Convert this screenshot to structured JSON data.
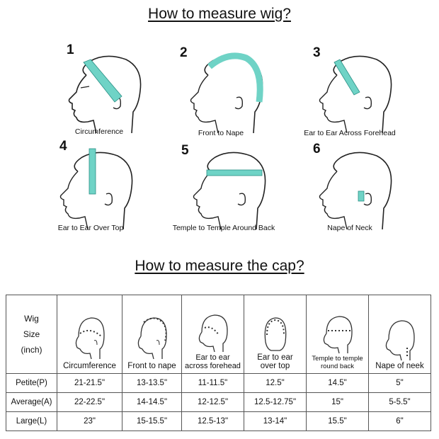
{
  "titles": {
    "wig": "How to measure wig?",
    "cap": "How to measure the cap?"
  },
  "steps": [
    {
      "number": "1",
      "caption": "Circumference"
    },
    {
      "number": "2",
      "caption": "Front to Nape"
    },
    {
      "number": "3",
      "caption": "Ear to Ear Across Forehead"
    },
    {
      "number": "4",
      "caption": "Ear to Ear Over Top"
    },
    {
      "number": "5",
      "caption": "Temple to Temple Around Back"
    },
    {
      "number": "6",
      "caption": "Nape of Neck"
    }
  ],
  "table": {
    "corner": [
      "Wig",
      "Size",
      "(inch)"
    ],
    "columns": [
      {
        "line1": "Circumference",
        "line2": ""
      },
      {
        "line1": "Front to nape",
        "line2": ""
      },
      {
        "line1": "Ear to ear",
        "line2": "across forehead"
      },
      {
        "line1": "Ear to ear",
        "line2": "over top"
      },
      {
        "line1": "Temple to temple",
        "line2": "round back"
      },
      {
        "line1": "Nape of neek",
        "line2": ""
      }
    ],
    "rows": [
      {
        "size": "Petite(P)",
        "values": [
          "21-21.5\"",
          "13-13.5\"",
          "11-11.5\"",
          "12.5\"",
          "14.5\"",
          "5\""
        ]
      },
      {
        "size": "Average(A)",
        "values": [
          "22-22.5\"",
          "14-14.5\"",
          "12-12.5\"",
          "12.5-12.75\"",
          "15\"",
          "5-5.5\""
        ]
      },
      {
        "size": "Large(L)",
        "values": [
          "23\"",
          "15-15.5\"",
          "12.5-13\"",
          "13-14\"",
          "15.5\"",
          "6\""
        ]
      }
    ]
  },
  "colors": {
    "tape": "#6fd3c6",
    "line": "#222222",
    "dots": "#333333"
  }
}
